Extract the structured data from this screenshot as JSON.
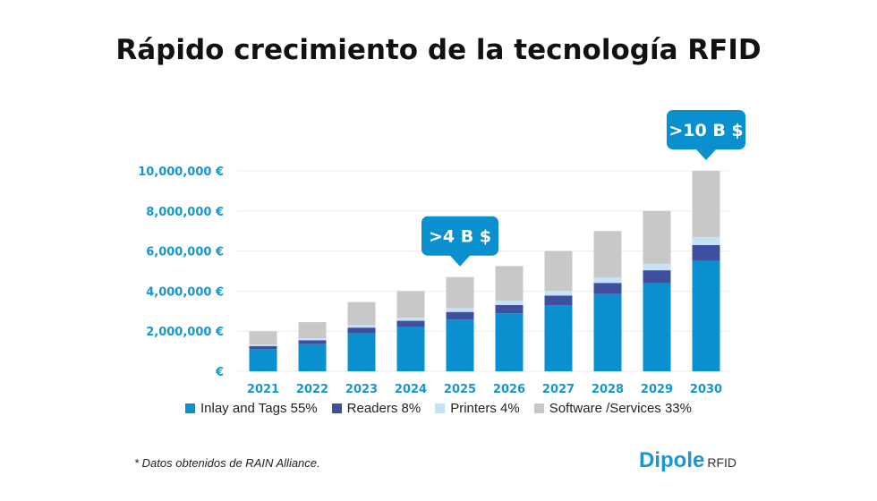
{
  "chart_data": {
    "type": "bar",
    "stacked": true,
    "title": "Rápido crecimiento de la tecnología RFID",
    "categories": [
      "2021",
      "2022",
      "2023",
      "2024",
      "2025",
      "2026",
      "2027",
      "2028",
      "2029",
      "2030"
    ],
    "ylim": [
      0,
      10000000
    ],
    "yticks": [
      0,
      2000000,
      4000000,
      6000000,
      8000000,
      10000000
    ],
    "ytick_labels": [
      "€",
      "2,000,000 €",
      "4,000,000 €",
      "6,000,000 €",
      "8,000,000 €",
      "10,000,000 €"
    ],
    "grid": true,
    "legend_position": "bottom",
    "series": [
      {
        "name": "Inlay and Tags 55%",
        "color": "#0a90cf",
        "values": [
          1100000,
          1350000,
          1900000,
          2200000,
          2585000,
          2890000,
          3300000,
          3850000,
          4400000,
          5500000
        ]
      },
      {
        "name": "Readers 8%",
        "color": "#3f4f9f",
        "values": [
          160000,
          200000,
          280000,
          320000,
          376000,
          420000,
          480000,
          560000,
          640000,
          800000
        ]
      },
      {
        "name": "Printers 4%",
        "color": "#c6e3f6",
        "values": [
          80000,
          100000,
          140000,
          160000,
          188000,
          210000,
          240000,
          280000,
          320000,
          400000
        ]
      },
      {
        "name": "Software /Services 33%",
        "color": "#c8c8c8",
        "values": [
          660000,
          800000,
          1130000,
          1320000,
          1551000,
          1730000,
          1980000,
          2310000,
          2640000,
          3300000
        ]
      }
    ],
    "annotations": [
      {
        "category": "2025",
        "text": ">4 B $"
      },
      {
        "category": "2030",
        "text": ">10 B $"
      }
    ],
    "axis_label_color": "#1696d2",
    "callout_color": "#0a90cf"
  },
  "footnote": "* Datos obtenidos de RAIN Alliance.",
  "logo": {
    "name": "Dipole",
    "suffix": "RFID"
  }
}
